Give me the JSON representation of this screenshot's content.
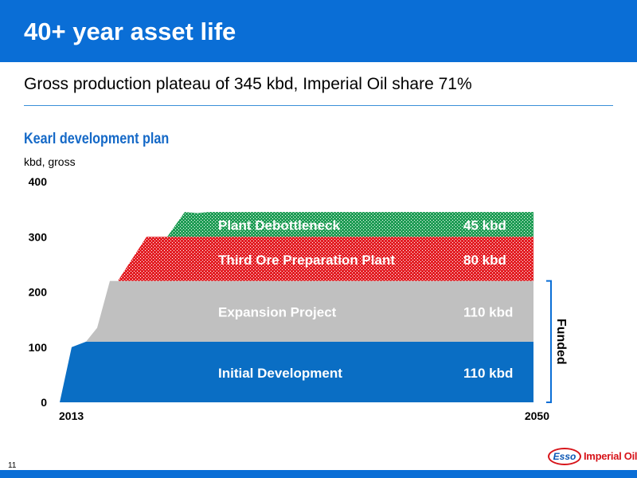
{
  "slide": {
    "title": "40+ year asset life",
    "subtitle": "Gross production plateau of 345 kbd, Imperial Oil share 71%",
    "page_number": "11"
  },
  "chart_data": {
    "type": "area",
    "title": "Kearl development plan",
    "ylabel": "kbd, gross",
    "ylim": [
      0,
      400
    ],
    "yticks": [
      0,
      100,
      200,
      300,
      400
    ],
    "x_start_label": "2013",
    "x_end_label": "2050",
    "series": [
      {
        "name": "Initial Development",
        "value_label": "110 kbd",
        "color": "#0a6ec4",
        "plateau": 110
      },
      {
        "name": "Expansion Project",
        "value_label": "110 kbd",
        "color": "#c0c0c0",
        "plateau": 110
      },
      {
        "name": "Third Ore Preparation Plant",
        "value_label": "80 kbd",
        "color": "#e31e24",
        "plateau": 80
      },
      {
        "name": "Plant Debottleneck",
        "value_label": "45 kbd",
        "color": "#1f9d55",
        "plateau": 45
      }
    ],
    "bracket_label": "Funded"
  },
  "brand": {
    "esso": "Esso",
    "company": "Imperial Oil",
    "primary_color": "#0a6ed6",
    "logo_red": "#d7141a"
  }
}
